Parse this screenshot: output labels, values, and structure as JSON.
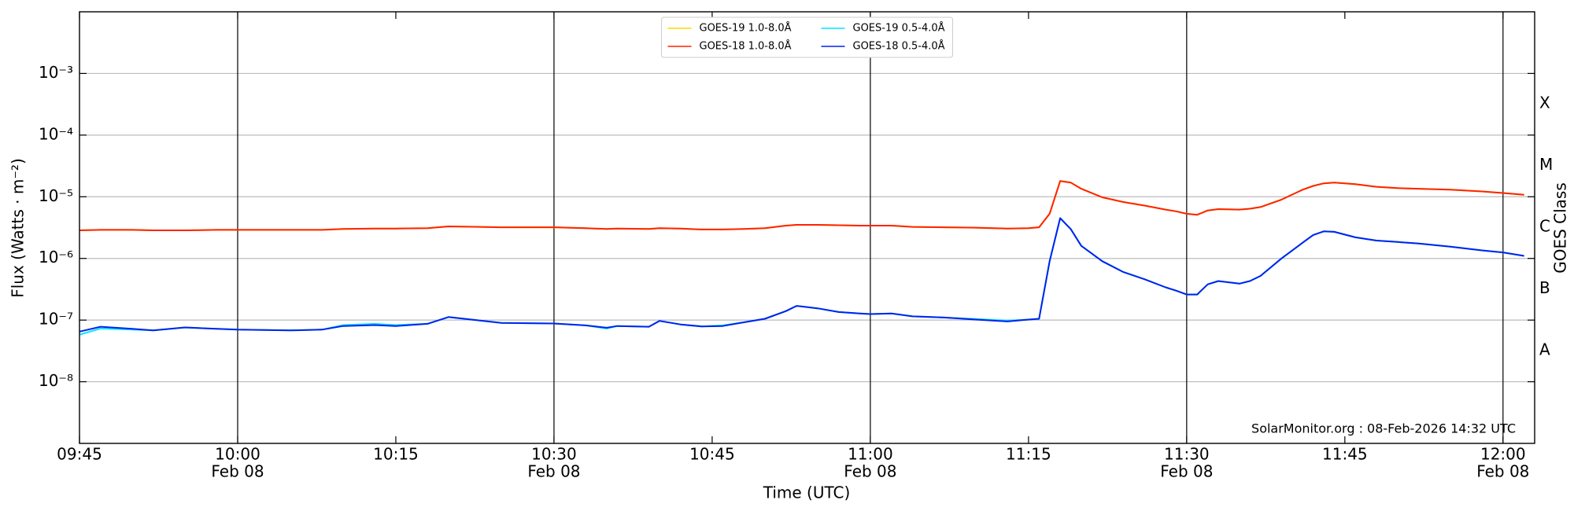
{
  "chart_data": {
    "type": "line",
    "x_label": "Time (UTC)",
    "y_label": "Flux (Watts · m⁻²)",
    "y2_label": "GOES Class",
    "annotation": "SolarMonitor.org : 08-Feb-2026 14:32 UTC",
    "log_y": true,
    "grid": true,
    "legend": "upper center",
    "xlim": [
      "09:45",
      "12:03"
    ],
    "ylim": [
      1e-09,
      0.01
    ],
    "xticks": [
      {
        "value": "09:45",
        "label": "09:45"
      },
      {
        "value": "10:00",
        "label": "10:00",
        "date": "Feb 08"
      },
      {
        "value": "10:15",
        "label": "10:15"
      },
      {
        "value": "10:30",
        "label": "10:30",
        "date": "Feb 08"
      },
      {
        "value": "10:45",
        "label": "10:45"
      },
      {
        "value": "11:00",
        "label": "11:00",
        "date": "Feb 08"
      },
      {
        "value": "11:15",
        "label": "11:15"
      },
      {
        "value": "11:30",
        "label": "11:30",
        "date": "Feb 08"
      },
      {
        "value": "11:45",
        "label": "11:45"
      },
      {
        "value": "12:00",
        "label": "12:00",
        "date": "Feb 08"
      }
    ],
    "vlines": [
      "10:00",
      "10:30",
      "11:00",
      "11:30",
      "12:00"
    ],
    "yticks": [
      {
        "value": 1e-08,
        "label": "10⁻⁸"
      },
      {
        "value": 1e-07,
        "label": "10⁻⁷"
      },
      {
        "value": 1e-06,
        "label": "10⁻⁶"
      },
      {
        "value": 1e-05,
        "label": "10⁻⁵"
      },
      {
        "value": 0.0001,
        "label": "10⁻⁴"
      },
      {
        "value": 0.001,
        "label": "10⁻³"
      }
    ],
    "y2ticks": [
      {
        "value": 3.2e-08,
        "label": "A"
      },
      {
        "value": 3.2e-07,
        "label": "B"
      },
      {
        "value": 3.2e-06,
        "label": "C"
      },
      {
        "value": 3.2e-05,
        "label": "M"
      },
      {
        "value": 0.00032,
        "label": "X"
      }
    ],
    "x": [
      "09:45",
      "09:47",
      "09:50",
      "09:52",
      "09:55",
      "09:58",
      "10:00",
      "10:05",
      "10:08",
      "10:10",
      "10:13",
      "10:15",
      "10:18",
      "10:20",
      "10:23",
      "10:25",
      "10:30",
      "10:33",
      "10:35",
      "10:36",
      "10:39",
      "10:40",
      "10:42",
      "10:44",
      "10:46",
      "10:48",
      "10:50",
      "10:52",
      "10:53",
      "10:55",
      "10:57",
      "10:59",
      "11:00",
      "11:02",
      "11:04",
      "11:07",
      "11:10",
      "11:13",
      "11:15",
      "11:16",
      "11:17",
      "11:18",
      "11:19",
      "11:20",
      "11:22",
      "11:24",
      "11:26",
      "11:28",
      "11:29",
      "11:30",
      "11:31",
      "11:32",
      "11:33",
      "11:35",
      "11:36",
      "11:37",
      "11:39",
      "11:41",
      "11:42",
      "11:43",
      "11:44",
      "11:46",
      "11:48",
      "11:50",
      "11:52",
      "11:55",
      "11:58",
      "12:00",
      "12:02"
    ],
    "series": [
      {
        "name": "GOES-19 1.0-8.0Å",
        "color": "#ffd700",
        "values": [
          2.85e-06,
          2.9e-06,
          2.9e-06,
          2.85e-06,
          2.85e-06,
          2.9e-06,
          2.9e-06,
          2.9e-06,
          2.9e-06,
          3e-06,
          3.05e-06,
          3.05e-06,
          3.1e-06,
          3.3e-06,
          3.25e-06,
          3.2e-06,
          3.2e-06,
          3.1e-06,
          3e-06,
          3.05e-06,
          3e-06,
          3.1e-06,
          3.05e-06,
          2.95e-06,
          2.95e-06,
          3e-06,
          3.1e-06,
          3.4e-06,
          3.5e-06,
          3.5e-06,
          3.45e-06,
          3.4e-06,
          3.4e-06,
          3.4e-06,
          3.25e-06,
          3.2e-06,
          3.15e-06,
          3.05e-06,
          3.1e-06,
          3.2e-06,
          5.3e-06,
          1.8e-05,
          1.7e-05,
          1.35e-05,
          9.8e-06,
          8.2e-06,
          7.2e-06,
          6.2e-06,
          5.8e-06,
          5.3e-06,
          5.1e-06,
          6e-06,
          6.3e-06,
          6.2e-06,
          6.4e-06,
          6.8e-06,
          9e-06,
          1.3e-05,
          1.5e-05,
          1.65e-05,
          1.7e-05,
          1.6e-05,
          1.45e-05,
          1.38e-05,
          1.35e-05,
          1.3e-05,
          1.22e-05,
          1.15e-05,
          1.08e-05
        ]
      },
      {
        "name": "GOES-18 1.0-8.0Å",
        "color": "#ff2200",
        "values": [
          2.85e-06,
          2.9e-06,
          2.9e-06,
          2.85e-06,
          2.85e-06,
          2.9e-06,
          2.9e-06,
          2.9e-06,
          2.9e-06,
          3e-06,
          3.05e-06,
          3.05e-06,
          3.1e-06,
          3.3e-06,
          3.25e-06,
          3.2e-06,
          3.2e-06,
          3.1e-06,
          3e-06,
          3.05e-06,
          3e-06,
          3.1e-06,
          3.05e-06,
          2.95e-06,
          2.95e-06,
          3e-06,
          3.1e-06,
          3.4e-06,
          3.5e-06,
          3.5e-06,
          3.45e-06,
          3.4e-06,
          3.4e-06,
          3.4e-06,
          3.25e-06,
          3.2e-06,
          3.15e-06,
          3.05e-06,
          3.1e-06,
          3.2e-06,
          5.3e-06,
          1.8e-05,
          1.7e-05,
          1.35e-05,
          9.8e-06,
          8.2e-06,
          7.2e-06,
          6.2e-06,
          5.8e-06,
          5.3e-06,
          5.1e-06,
          6e-06,
          6.3e-06,
          6.2e-06,
          6.4e-06,
          6.8e-06,
          9e-06,
          1.3e-05,
          1.5e-05,
          1.65e-05,
          1.7e-05,
          1.6e-05,
          1.45e-05,
          1.38e-05,
          1.35e-05,
          1.3e-05,
          1.22e-05,
          1.15e-05,
          1.08e-05
        ]
      },
      {
        "name": "GOES-19 0.5-4.0Å",
        "color": "#00e5ff",
        "values": [
          5.8e-08,
          7.3e-08,
          7e-08,
          6.8e-08,
          7.6e-08,
          7.2e-08,
          7e-08,
          6.8e-08,
          7e-08,
          8.3e-08,
          8.7e-08,
          8.3e-08,
          8.7e-08,
          1.12e-07,
          9.8e-08,
          9e-08,
          8.8e-08,
          8.2e-08,
          7.3e-08,
          8e-08,
          7.8e-08,
          9.7e-08,
          8.5e-08,
          7.9e-08,
          8.2e-08,
          9.2e-08,
          1.05e-07,
          1.4e-07,
          1.7e-07,
          1.55e-07,
          1.35e-07,
          1.28e-07,
          1.25e-07,
          1.28e-07,
          1.15e-07,
          1.1e-07,
          1.04e-07,
          9.8e-08,
          1.02e-07,
          1.05e-07,
          9e-07,
          4.5e-06,
          3e-06,
          1.6e-06,
          9e-07,
          6e-07,
          4.6e-07,
          3.4e-07,
          3e-07,
          2.6e-07,
          2.6e-07,
          3.8e-07,
          4.3e-07,
          3.9e-07,
          4.3e-07,
          5.2e-07,
          1e-06,
          1.8e-06,
          2.4e-06,
          2.75e-06,
          2.7e-06,
          2.2e-06,
          1.95e-06,
          1.85e-06,
          1.75e-06,
          1.55e-06,
          1.35e-06,
          1.25e-06,
          1.1e-06
        ]
      },
      {
        "name": "GOES-18 0.5-4.0Å",
        "color": "#0022ee",
        "values": [
          6.5e-08,
          7.8e-08,
          7.2e-08,
          6.8e-08,
          7.6e-08,
          7.2e-08,
          7e-08,
          6.8e-08,
          7e-08,
          8e-08,
          8.3e-08,
          8e-08,
          8.7e-08,
          1.12e-07,
          9.8e-08,
          9e-08,
          8.8e-08,
          8.2e-08,
          7.5e-08,
          8e-08,
          7.8e-08,
          9.7e-08,
          8.5e-08,
          7.9e-08,
          8e-08,
          9.2e-08,
          1.05e-07,
          1.4e-07,
          1.7e-07,
          1.55e-07,
          1.35e-07,
          1.28e-07,
          1.25e-07,
          1.28e-07,
          1.15e-07,
          1.1e-07,
          1.02e-07,
          9.5e-08,
          1.02e-07,
          1.05e-07,
          9e-07,
          4.5e-06,
          3e-06,
          1.6e-06,
          9e-07,
          6e-07,
          4.6e-07,
          3.4e-07,
          3e-07,
          2.6e-07,
          2.6e-07,
          3.8e-07,
          4.3e-07,
          3.9e-07,
          4.3e-07,
          5.2e-07,
          1e-06,
          1.8e-06,
          2.4e-06,
          2.75e-06,
          2.7e-06,
          2.2e-06,
          1.95e-06,
          1.85e-06,
          1.75e-06,
          1.55e-06,
          1.35e-06,
          1.25e-06,
          1.1e-06
        ]
      }
    ]
  }
}
